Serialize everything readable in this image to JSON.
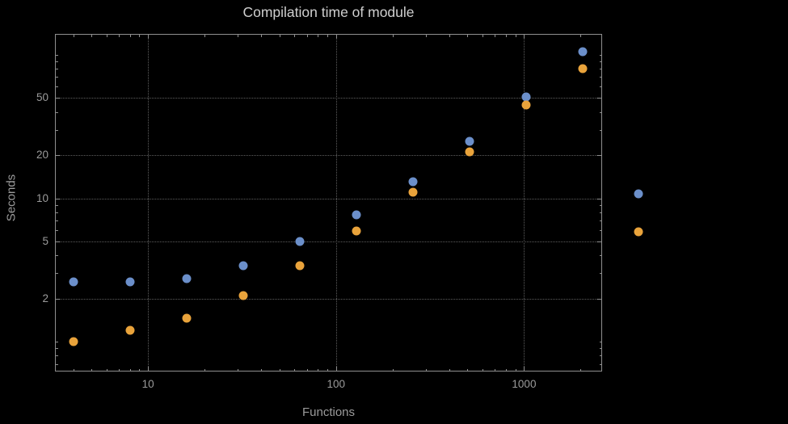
{
  "chart_data": {
    "type": "scatter",
    "title": "Compilation time of module",
    "xlabel": "Functions",
    "ylabel": "Seconds",
    "x_scale": "log",
    "y_scale": "log",
    "xlim": [
      3.2,
      2600
    ],
    "ylim": [
      0.62,
      140
    ],
    "grid": true,
    "x": [
      4,
      8,
      16,
      32,
      64,
      128,
      256,
      512,
      1024,
      2048
    ],
    "series": [
      {
        "name": "series-blue",
        "color": "#6b8fca",
        "values": [
          2.6,
          2.6,
          2.75,
          3.4,
          5.0,
          7.7,
          13,
          25,
          51,
          105
        ]
      },
      {
        "name": "series-orange",
        "color": "#e9a33b",
        "values": [
          1.0,
          1.2,
          1.45,
          2.1,
          3.4,
          5.9,
          11,
          21,
          45,
          80
        ]
      }
    ],
    "x_ticks": [
      {
        "v": 10,
        "label": "10"
      },
      {
        "v": 100,
        "label": "100"
      },
      {
        "v": 1000,
        "label": "1000"
      }
    ],
    "y_ticks": [
      {
        "v": 2,
        "label": "2"
      },
      {
        "v": 5,
        "label": "5"
      },
      {
        "v": 10,
        "label": "10"
      },
      {
        "v": 20,
        "label": "20"
      },
      {
        "v": 50,
        "label": "50"
      }
    ],
    "legend": {
      "position": "right-outside",
      "markers": [
        {
          "name": "legend-marker-blue",
          "color": "#6b8fca"
        },
        {
          "name": "legend-marker-orange",
          "color": "#e9a33b"
        }
      ]
    }
  },
  "colors": {
    "background": "#000000",
    "frame": "#8f8f8f",
    "gridline": "#5e5e5e",
    "tick_text": "#9b9b9b",
    "title_text": "#cfcfcf",
    "series_blue": "#6b8fca",
    "series_orange": "#e9a33b"
  }
}
